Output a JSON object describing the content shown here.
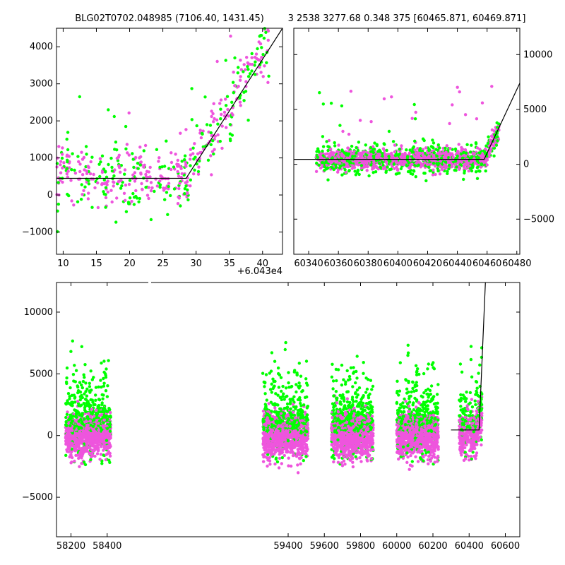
{
  "titles": {
    "left": "BLG02T0702.048985 (7106.40, 1431.45)",
    "right": "3 2538 3277.68 0.348 375 [60465.871, 60469.871]"
  },
  "colors": {
    "green": "#00ff00",
    "magenta": "#ee55dd",
    "model": "#000000"
  },
  "chart_data": [
    {
      "id": "top-left",
      "type": "scatter",
      "title": "BLG02T0702.048985 (7106.40, 1431.45)",
      "xlim": [
        9,
        43
      ],
      "ylim": [
        -1600,
        4500
      ],
      "xticks": [
        10,
        15,
        20,
        25,
        30,
        35,
        40
      ],
      "yticks": [
        -1000,
        0,
        1000,
        2000,
        3000,
        4000
      ],
      "x_offset_label": "+6.043e4",
      "model_line": {
        "x": [
          9,
          28.5,
          43
        ],
        "y": [
          450,
          450,
          4500
        ]
      }
    },
    {
      "id": "top-right",
      "type": "scatter",
      "title": "3 2538 3277.68 0.348 375 [60465.871, 60469.871]",
      "xlim": [
        60330,
        60482
      ],
      "ylim": [
        -8200,
        12400
      ],
      "xticks": [
        60340,
        60360,
        60380,
        60400,
        60420,
        60440,
        60460,
        60480
      ],
      "yticks": [
        -5000,
        0,
        5000,
        10000
      ],
      "model_line": {
        "x": [
          60330,
          60458,
          60482
        ],
        "y": [
          450,
          450,
          7400
        ]
      }
    },
    {
      "id": "bottom",
      "type": "scatter",
      "xlim": [
        58120,
        60680
      ],
      "ylim": [
        -8200,
        12400
      ],
      "xticks": [
        58200,
        58400,
        59400,
        59600,
        59800,
        60000,
        60200,
        60400,
        60600
      ],
      "yticks": [
        -5000,
        0,
        5000,
        10000
      ],
      "broken_axis_x": 58530,
      "model_line": {
        "x": [
          60300,
          60455,
          60490
        ],
        "y": [
          450,
          450,
          12400
        ]
      }
    }
  ]
}
